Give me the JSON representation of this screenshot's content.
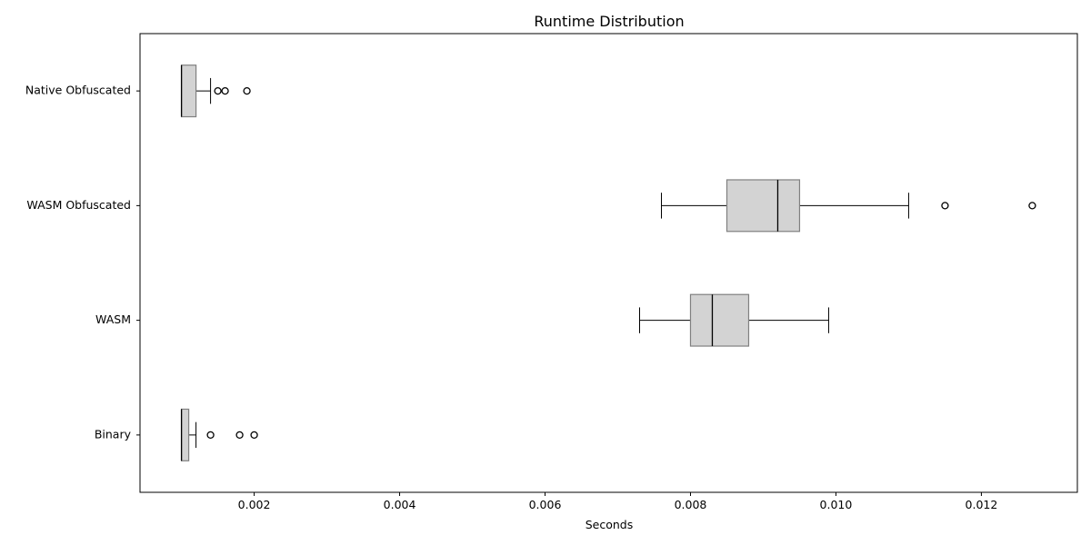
{
  "chart_data": {
    "type": "boxplot",
    "orientation": "horizontal",
    "title": "Runtime Distribution",
    "xlabel": "Seconds",
    "ylabel": "",
    "xlim": [
      0.00043,
      0.01332
    ],
    "xticks": [
      0.002,
      0.004,
      0.006,
      0.008,
      0.01,
      0.012
    ],
    "xtick_labels": [
      "0.002",
      "0.004",
      "0.006",
      "0.008",
      "0.010",
      "0.012"
    ],
    "grid": false,
    "box_color": "#d3d3d3",
    "box_edge_color": "#808080",
    "categories": [
      "Binary",
      "WASM",
      "WASM Obfuscated",
      "Native Obfuscated"
    ],
    "boxes": [
      {
        "name": "Binary",
        "whislo": 0.001,
        "q1": 0.001,
        "med": 0.001,
        "q3": 0.0011,
        "whishi": 0.0012,
        "fliers": [
          0.0014,
          0.0018,
          0.002
        ]
      },
      {
        "name": "WASM",
        "whislo": 0.0073,
        "q1": 0.008,
        "med": 0.0083,
        "q3": 0.0088,
        "whishi": 0.0099,
        "fliers": []
      },
      {
        "name": "WASM Obfuscated",
        "whislo": 0.0076,
        "q1": 0.0085,
        "med": 0.0092,
        "q3": 0.0095,
        "whishi": 0.011,
        "fliers": [
          0.0115,
          0.0127
        ]
      },
      {
        "name": "Native Obfuscated",
        "whislo": 0.001,
        "q1": 0.001,
        "med": 0.001,
        "q3": 0.0012,
        "whishi": 0.0014,
        "fliers": [
          0.0015,
          0.0016,
          0.0019
        ]
      }
    ]
  }
}
